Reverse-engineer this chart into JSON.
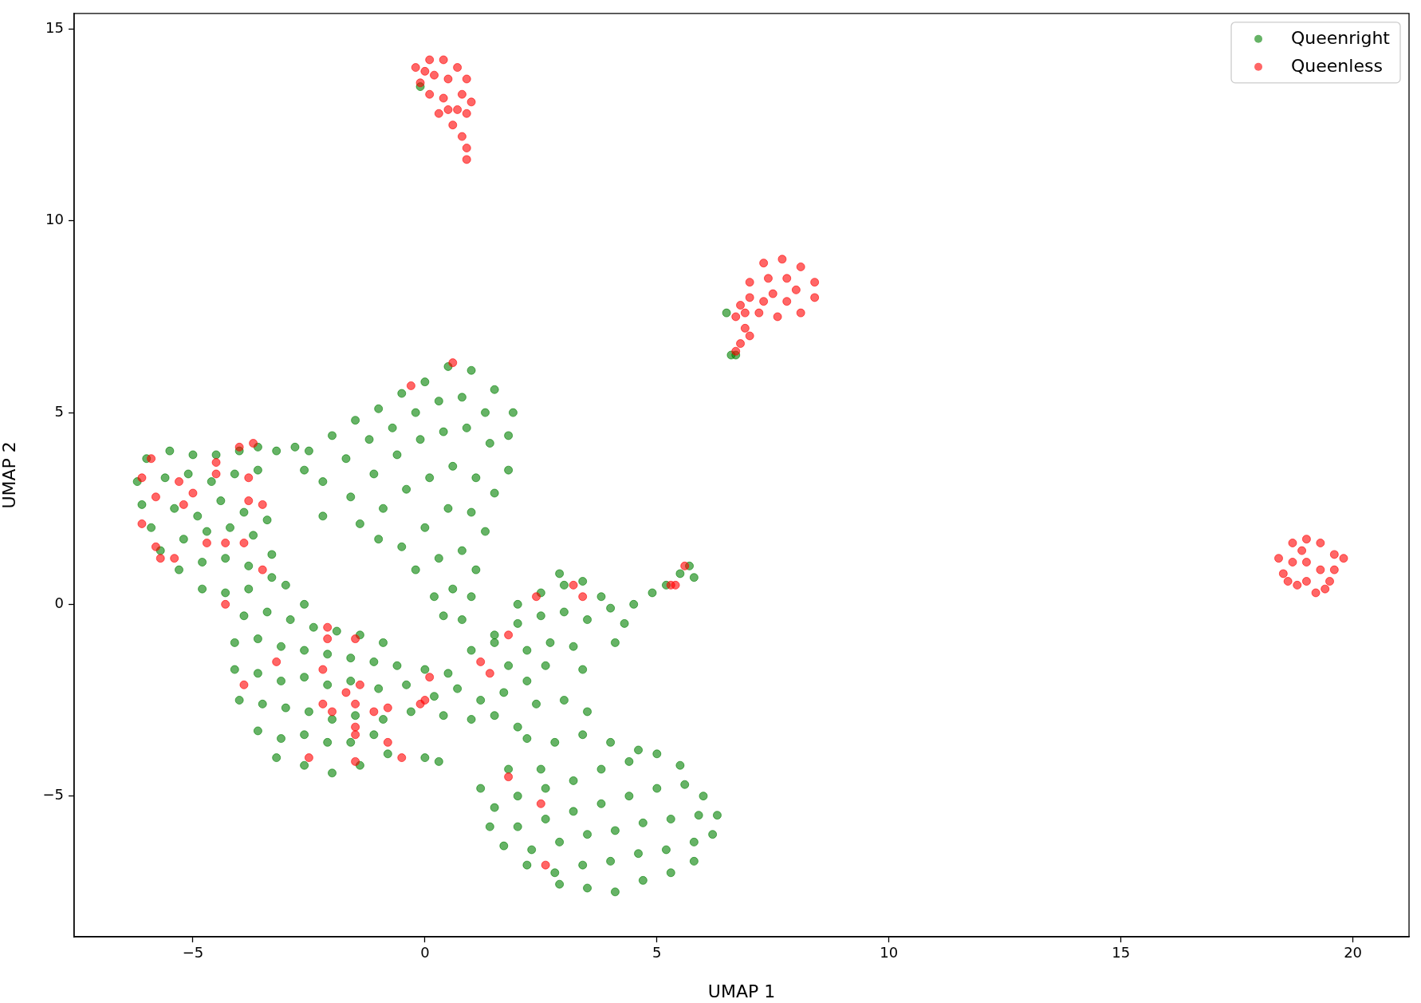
{
  "chart_data": {
    "type": "scatter",
    "xlabel": "UMAP 1",
    "ylabel": "UMAP 2",
    "xlim": [
      -7.56,
      21.21
    ],
    "ylim": [
      -8.67,
      15.41
    ],
    "xticks": [
      {
        "value": -5,
        "label": "−5"
      },
      0,
      5,
      10,
      15,
      20
    ],
    "yticks": [
      {
        "value": -5,
        "label": "−5"
      },
      0,
      5,
      10,
      15
    ],
    "legend": "top right",
    "marker": "circle",
    "series": [
      {
        "name": "Queenright",
        "color": "#008000",
        "x": [
          -6.2,
          -6.0,
          -5.5,
          -5.0,
          -4.5,
          -4.0,
          -3.6,
          -3.2,
          -2.8,
          -6.1,
          -5.6,
          -5.1,
          -4.6,
          -4.1,
          -3.6,
          -5.9,
          -5.4,
          -4.9,
          -4.4,
          -3.9,
          -3.4,
          -5.7,
          -5.2,
          -4.7,
          -4.2,
          -3.7,
          -3.3,
          -5.3,
          -4.8,
          -4.3,
          -3.8,
          -3.3,
          -4.8,
          -4.3,
          -3.8,
          -3.0,
          -2.6,
          -3.9,
          -3.4,
          -2.9,
          -2.4,
          -1.9,
          -1.4,
          -0.9,
          -4.1,
          -3.6,
          -3.1,
          -2.6,
          -2.1,
          -1.6,
          -1.1,
          -0.6,
          -4.1,
          -3.6,
          -3.1,
          -2.6,
          -2.1,
          -1.6,
          -1.0,
          -0.4,
          -4.0,
          -3.5,
          -3.0,
          -2.5,
          -2.0,
          -1.5,
          -0.9,
          -0.3,
          -3.6,
          -3.1,
          -2.6,
          -2.1,
          -1.6,
          -1.1,
          -3.2,
          -2.6,
          -2.0,
          -1.4,
          -0.8,
          0.0,
          0.3,
          0.0,
          0.5,
          1.0,
          1.5,
          0.2,
          0.7,
          1.2,
          1.7,
          2.2,
          0.4,
          1.0,
          1.5,
          2.0,
          -2.6,
          -2.5,
          -2.0,
          -1.5,
          -1.0,
          -0.5,
          0.0,
          0.5,
          1.0,
          1.5,
          1.9,
          -2.2,
          -1.7,
          -1.2,
          -0.7,
          -0.2,
          0.3,
          0.8,
          1.3,
          1.8,
          -2.2,
          -1.6,
          -1.1,
          -0.6,
          -0.1,
          0.4,
          0.9,
          1.4,
          1.8,
          -1.4,
          -0.9,
          -0.4,
          0.1,
          0.6,
          1.1,
          1.5,
          -1.0,
          -0.5,
          0.0,
          0.5,
          1.0,
          1.3,
          -0.2,
          0.3,
          0.8,
          1.1,
          0.2,
          0.6,
          1.0,
          0.4,
          0.8,
          1.5,
          2.0,
          2.5,
          3.0,
          3.5,
          2.0,
          2.5,
          3.0,
          3.4,
          3.8,
          2.9,
          2.2,
          2.7,
          3.2,
          1.8,
          2.6,
          3.4,
          4.0,
          4.5,
          4.9,
          5.2,
          5.5,
          5.7,
          5.8,
          4.3,
          4.1,
          2.4,
          3.0,
          3.5,
          2.2,
          2.8,
          3.4,
          4.0,
          4.6,
          1.8,
          1.2,
          2.5,
          1.5,
          2.0,
          2.6,
          3.2,
          3.8,
          4.4,
          5.0,
          5.5,
          1.4,
          2.0,
          2.6,
          3.2,
          3.8,
          4.4,
          5.0,
          5.6,
          6.0,
          1.7,
          2.3,
          2.9,
          3.5,
          4.1,
          4.7,
          5.3,
          5.9,
          6.3,
          2.2,
          2.8,
          3.4,
          4.0,
          4.6,
          5.2,
          5.8,
          6.2,
          2.9,
          3.5,
          4.1,
          4.7,
          5.3,
          5.8,
          -0.1,
          6.5,
          6.6,
          6.7
        ],
        "values": [
          3.2,
          3.8,
          4.0,
          3.9,
          3.9,
          4.0,
          4.1,
          4.0,
          4.1,
          2.6,
          3.3,
          3.4,
          3.2,
          3.4,
          3.5,
          2.0,
          2.5,
          2.3,
          2.7,
          2.4,
          2.2,
          1.4,
          1.7,
          1.9,
          2.0,
          1.8,
          1.3,
          0.9,
          1.1,
          1.2,
          1.0,
          0.7,
          0.4,
          0.3,
          0.4,
          0.5,
          0.0,
          -0.3,
          -0.2,
          -0.4,
          -0.6,
          -0.7,
          -0.8,
          -1.0,
          -1.0,
          -0.9,
          -1.1,
          -1.2,
          -1.3,
          -1.4,
          -1.5,
          -1.6,
          -1.7,
          -1.8,
          -2.0,
          -1.9,
          -2.1,
          -2.0,
          -2.2,
          -2.1,
          -2.5,
          -2.6,
          -2.7,
          -2.8,
          -3.0,
          -2.9,
          -3.0,
          -2.8,
          -3.3,
          -3.5,
          -3.4,
          -3.6,
          -3.6,
          -3.4,
          -4.0,
          -4.2,
          -4.4,
          -4.2,
          -3.9,
          -4.0,
          -4.1,
          -1.7,
          -1.8,
          -1.2,
          -1.0,
          -2.4,
          -2.2,
          -2.5,
          -2.3,
          -2.0,
          -2.9,
          -3.0,
          -2.9,
          -3.2,
          3.5,
          4.0,
          4.4,
          4.8,
          5.1,
          5.5,
          5.8,
          6.2,
          6.1,
          5.6,
          5.0,
          3.2,
          3.8,
          4.3,
          4.6,
          5.0,
          5.3,
          5.4,
          5.0,
          4.4,
          2.3,
          2.8,
          3.4,
          3.9,
          4.3,
          4.5,
          4.6,
          4.2,
          3.5,
          2.1,
          2.5,
          3.0,
          3.3,
          3.6,
          3.3,
          2.9,
          1.7,
          1.5,
          2.0,
          2.5,
          2.4,
          1.9,
          0.9,
          1.2,
          1.4,
          0.9,
          0.2,
          0.4,
          0.2,
          -0.3,
          -0.4,
          -0.8,
          -0.5,
          -0.3,
          -0.2,
          -0.4,
          0.0,
          0.3,
          0.5,
          0.6,
          0.2,
          0.8,
          -1.2,
          -1.0,
          -1.1,
          -1.6,
          -1.6,
          -1.7,
          -0.1,
          0.0,
          0.3,
          0.5,
          0.8,
          1.0,
          0.7,
          -0.5,
          -1.0,
          -2.6,
          -2.5,
          -2.8,
          -3.5,
          -3.6,
          -3.4,
          -3.6,
          -3.8,
          -4.3,
          -4.8,
          -4.3,
          -5.3,
          -5.0,
          -4.8,
          -4.6,
          -4.3,
          -4.1,
          -3.9,
          -4.2,
          -5.8,
          -5.8,
          -5.6,
          -5.4,
          -5.2,
          -5.0,
          -4.8,
          -4.7,
          -5.0,
          -6.3,
          -6.4,
          -6.2,
          -6.0,
          -5.9,
          -5.7,
          -5.6,
          -5.5,
          -5.5,
          -6.8,
          -7.0,
          -6.8,
          -6.7,
          -6.5,
          -6.4,
          -6.2,
          -6.0,
          -7.3,
          -7.4,
          -7.5,
          -7.2,
          -7.0,
          -6.7,
          13.5,
          7.6,
          6.5,
          6.5
        ]
      },
      {
        "name": "Queenless",
        "color": "#ff0000",
        "x": [
          -5.9,
          -6.1,
          -5.0,
          -4.5,
          -4.5,
          -4.0,
          -3.7,
          -3.8,
          -3.8,
          -3.5,
          -5.8,
          -6.1,
          -5.8,
          -5.7,
          -5.4,
          -4.7,
          -4.3,
          -3.9,
          -3.5,
          -4.3,
          -3.2,
          -3.9,
          -2.1,
          -2.1,
          -2.2,
          -1.5,
          -1.4,
          -1.7,
          -2.2,
          -2.0,
          -1.5,
          -1.1,
          -0.8,
          -1.5,
          -1.5,
          -0.8,
          -2.5,
          -1.5,
          -0.5,
          0.1,
          0.0,
          -0.1,
          -0.3,
          0.6,
          1.2,
          1.4,
          1.8,
          2.4,
          3.2,
          3.4,
          5.3,
          5.4,
          5.6,
          2.5,
          2.6,
          1.8,
          -5.3,
          -5.2,
          -0.2,
          0.1,
          0.4,
          0.7,
          0.9,
          -0.1,
          0.2,
          0.5,
          0.8,
          0.1,
          0.4,
          0.7,
          0.3,
          0.6,
          0.9,
          0.8,
          0.9,
          0.9,
          1.0,
          0.5,
          0.0,
          7.3,
          7.7,
          8.1,
          8.4,
          8.4,
          8.1,
          7.6,
          7.2,
          7.0,
          7.0,
          7.4,
          7.8,
          8.0,
          7.5,
          7.8,
          7.3,
          6.8,
          6.7,
          6.9,
          7.0,
          6.8,
          6.7,
          6.9,
          18.4,
          18.5,
          18.7,
          18.8,
          19.0,
          19.0,
          19.2,
          19.3,
          19.5,
          19.6,
          19.8,
          18.7,
          19.3,
          19.0,
          18.9,
          19.6,
          19.4,
          18.6
        ],
        "values": [
          3.8,
          3.3,
          2.9,
          3.7,
          3.4,
          4.1,
          4.2,
          3.3,
          2.7,
          2.6,
          2.8,
          2.1,
          1.5,
          1.2,
          1.2,
          1.6,
          1.6,
          1.6,
          0.9,
          0.0,
          -1.5,
          -2.1,
          -0.6,
          -0.9,
          -1.7,
          -0.9,
          -2.1,
          -2.3,
          -2.6,
          -2.8,
          -2.6,
          -2.8,
          -2.7,
          -3.2,
          -3.4,
          -3.6,
          -4.0,
          -4.1,
          -4.0,
          -1.9,
          -2.5,
          -2.6,
          5.7,
          6.3,
          -1.5,
          -1.8,
          -0.8,
          0.2,
          0.5,
          0.2,
          0.5,
          0.5,
          1.0,
          -5.2,
          -6.8,
          -4.5,
          3.2,
          2.6,
          14.0,
          14.2,
          14.2,
          14.0,
          13.7,
          13.6,
          13.8,
          13.7,
          13.3,
          13.3,
          13.2,
          12.9,
          12.8,
          12.5,
          12.8,
          12.2,
          11.9,
          11.6,
          13.1,
          12.9,
          13.9,
          8.9,
          9.0,
          8.8,
          8.4,
          8.0,
          7.6,
          7.5,
          7.6,
          8.0,
          8.4,
          8.5,
          8.5,
          8.2,
          8.1,
          7.9,
          7.9,
          7.8,
          7.5,
          7.2,
          7.0,
          6.8,
          6.6,
          7.6,
          1.2,
          0.8,
          1.6,
          0.5,
          1.7,
          1.1,
          0.3,
          1.6,
          0.6,
          1.3,
          1.2,
          1.1,
          0.9,
          0.6,
          1.4,
          0.9,
          0.4,
          0.6
        ]
      }
    ]
  }
}
